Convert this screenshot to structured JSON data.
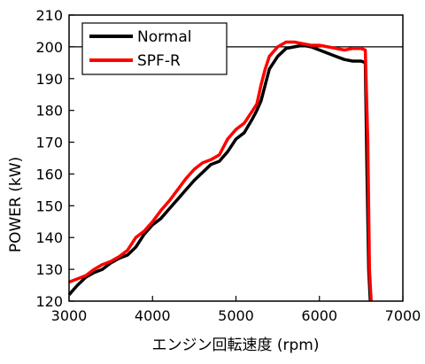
{
  "chart_data": {
    "type": "line",
    "title": "",
    "xlabel": "エンジン回転速度 (rpm)",
    "ylabel": "POWER (kW)",
    "xlim": [
      3000,
      7000
    ],
    "ylim": [
      120,
      210
    ],
    "xticks": [
      3000,
      4000,
      5000,
      6000,
      7000
    ],
    "yticks": [
      120,
      130,
      140,
      150,
      160,
      170,
      180,
      190,
      200,
      210
    ],
    "reference_line_y": 200,
    "grid": false,
    "legend_position": "top-left",
    "series": [
      {
        "name": "Normal",
        "color": "#000000",
        "x": [
          3000,
          3100,
          3200,
          3300,
          3400,
          3500,
          3600,
          3700,
          3800,
          3900,
          4000,
          4100,
          4200,
          4300,
          4400,
          4500,
          4600,
          4700,
          4800,
          4900,
          5000,
          5100,
          5200,
          5250,
          5300,
          5350,
          5400,
          5500,
          5600,
          5700,
          5800,
          5900,
          6000,
          6100,
          6200,
          6300,
          6400,
          6500,
          6550,
          6570,
          6590,
          6610
        ],
        "y": [
          122,
          125,
          127.5,
          129,
          130,
          132,
          133.5,
          134.5,
          137,
          141,
          144,
          146,
          149,
          152,
          155,
          158,
          160.5,
          163,
          164,
          167,
          171,
          173,
          177.5,
          180,
          183,
          188,
          193,
          197,
          199.5,
          200,
          200.5,
          200,
          199,
          198,
          197,
          196,
          195.5,
          195.5,
          195,
          160,
          130,
          120
        ]
      },
      {
        "name": "SPF-R",
        "color": "#ff0000",
        "x": [
          3000,
          3100,
          3200,
          3300,
          3400,
          3500,
          3600,
          3700,
          3800,
          3900,
          4000,
          4100,
          4200,
          4300,
          4400,
          4500,
          4600,
          4700,
          4800,
          4900,
          5000,
          5100,
          5200,
          5250,
          5300,
          5350,
          5400,
          5500,
          5600,
          5700,
          5800,
          5900,
          6000,
          6100,
          6200,
          6300,
          6400,
          6500,
          6550,
          6580,
          6600,
          6620
        ],
        "y": [
          126,
          127,
          128,
          130,
          131.5,
          132.5,
          134,
          136,
          140,
          142,
          145,
          148.5,
          151.5,
          155,
          158.5,
          161.5,
          163.5,
          164.5,
          166,
          171,
          174,
          176,
          180,
          182,
          188,
          193,
          197,
          200,
          201.5,
          201.5,
          201,
          200.5,
          200.5,
          200,
          199.5,
          199,
          199.5,
          199.5,
          199,
          170,
          130,
          120
        ]
      }
    ]
  }
}
